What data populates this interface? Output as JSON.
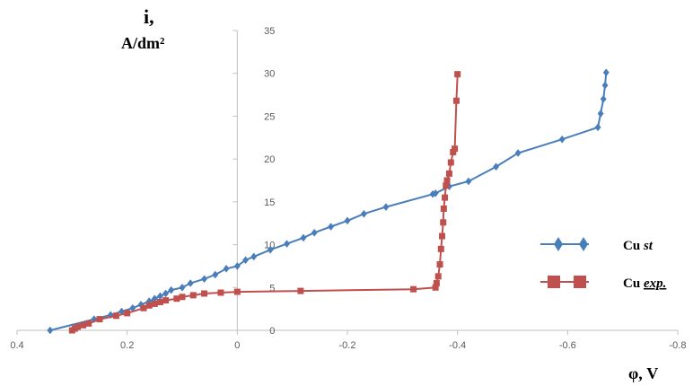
{
  "chart_data": {
    "type": "scatter",
    "ylabel_line1": "i,",
    "ylabel_line2": "A/dm²",
    "xlabel": "φ, V",
    "xlim": [
      0.4,
      -0.8
    ],
    "ylim": [
      0,
      35
    ],
    "x_ticks": [
      {
        "value": 0.4,
        "label": "0.4"
      },
      {
        "value": 0.2,
        "label": "0.2"
      },
      {
        "value": 0,
        "label": "0"
      },
      {
        "value": -0.2,
        "label": "-0.2"
      },
      {
        "value": -0.4,
        "label": "-0.4"
      },
      {
        "value": -0.6,
        "label": "-0.6"
      },
      {
        "value": -0.8,
        "label": "-0.8"
      }
    ],
    "y_ticks": [
      {
        "value": 0,
        "label": "0"
      },
      {
        "value": 5,
        "label": "5"
      },
      {
        "value": 10,
        "label": "10"
      },
      {
        "value": 15,
        "label": "15"
      },
      {
        "value": 20,
        "label": "20"
      },
      {
        "value": 25,
        "label": "25"
      },
      {
        "value": 30,
        "label": "30"
      },
      {
        "value": 35,
        "label": "35"
      }
    ],
    "legend_position": "right",
    "series": [
      {
        "name": "Cu st",
        "name_main": "Cu ",
        "name_italic": "st",
        "marker": "diamond",
        "color": "#4a7ebb",
        "x": [
          0.34,
          0.26,
          0.23,
          0.21,
          0.19,
          0.175,
          0.16,
          0.15,
          0.14,
          0.13,
          0.12,
          0.1,
          0.085,
          0.06,
          0.04,
          0.02,
          0.0,
          -0.015,
          -0.03,
          -0.06,
          -0.09,
          -0.12,
          -0.14,
          -0.17,
          -0.2,
          -0.23,
          -0.27,
          -0.355,
          -0.36,
          -0.385,
          -0.42,
          -0.47,
          -0.51,
          -0.59,
          -0.655,
          -0.66,
          -0.665,
          -0.668,
          -0.67
        ],
        "y": [
          0,
          1.3,
          1.8,
          2.2,
          2.6,
          3.0,
          3.4,
          3.7,
          4.0,
          4.3,
          4.7,
          5.0,
          5.5,
          6.0,
          6.5,
          7.2,
          7.5,
          8.2,
          8.6,
          9.4,
          10.1,
          10.8,
          11.4,
          12.1,
          12.8,
          13.6,
          14.4,
          15.9,
          16.0,
          16.8,
          17.4,
          19.1,
          20.7,
          22.3,
          23.7,
          25.3,
          27.0,
          28.6,
          30.1
        ]
      },
      {
        "name": "Cu exp.",
        "name_main": "Cu ",
        "name_italic": "exp.",
        "marker": "square",
        "color": "#c0504d",
        "x": [
          0.3,
          0.295,
          0.29,
          0.28,
          0.27,
          0.25,
          0.22,
          0.2,
          0.17,
          0.16,
          0.15,
          0.14,
          0.13,
          0.11,
          0.1,
          0.08,
          0.06,
          0.03,
          0.0,
          -0.115,
          -0.32,
          -0.36,
          -0.362,
          -0.365,
          -0.368,
          -0.37,
          -0.372,
          -0.374,
          -0.375,
          -0.377,
          -0.379,
          -0.381,
          -0.385,
          -0.388,
          -0.392,
          -0.395,
          -0.398,
          -0.4
        ],
        "y": [
          0,
          0.2,
          0.4,
          0.6,
          0.8,
          1.3,
          1.7,
          2.0,
          2.6,
          2.9,
          3.1,
          3.3,
          3.5,
          3.7,
          3.9,
          4.1,
          4.3,
          4.4,
          4.5,
          4.6,
          4.8,
          5.0,
          5.5,
          6.3,
          7.7,
          9.5,
          11.0,
          12.6,
          14.2,
          15.5,
          16.9,
          17.5,
          18.3,
          19.6,
          20.8,
          21.2,
          26.8,
          29.9
        ]
      }
    ]
  }
}
